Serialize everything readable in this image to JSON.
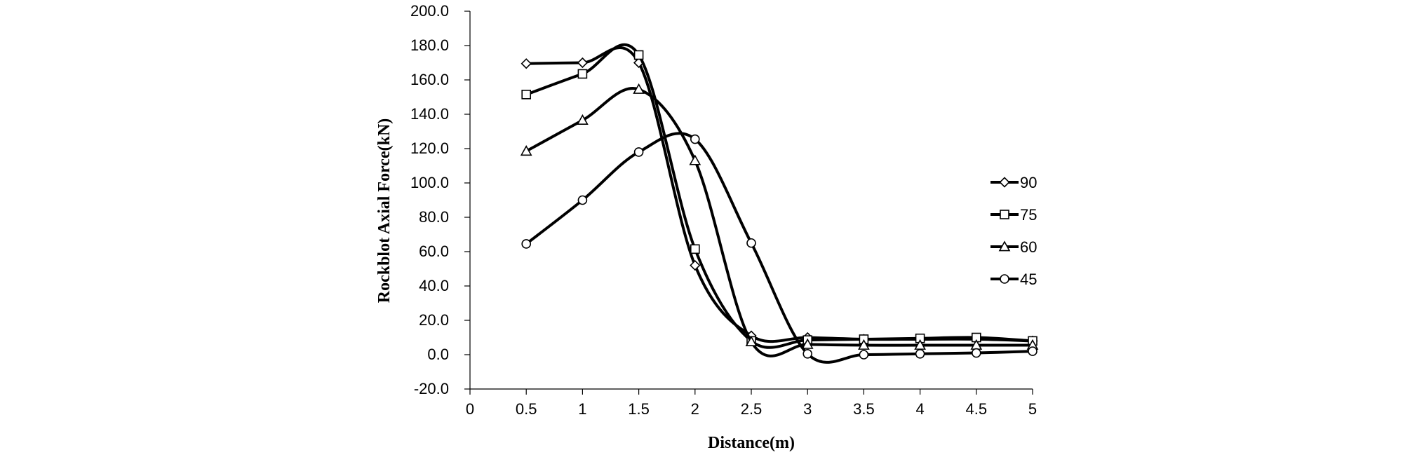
{
  "chart_data": {
    "type": "line",
    "title": "",
    "xlabel": "Distance(m)",
    "ylabel": "Rockblot Axial Force(kN)",
    "xlim": [
      0,
      5
    ],
    "ylim": [
      -20,
      200
    ],
    "x_ticks": [
      "0",
      "0.5",
      "1",
      "1.5",
      "2",
      "2.5",
      "3",
      "3.5",
      "4",
      "4.5",
      "5"
    ],
    "y_ticks": [
      "-20.0",
      "0.0",
      "20.0",
      "40.0",
      "60.0",
      "80.0",
      "100.0",
      "120.0",
      "140.0",
      "160.0",
      "180.0",
      "200.0"
    ],
    "grid": false,
    "smooth": true,
    "legend_position": "right",
    "x": [
      0.5,
      1,
      1.5,
      2,
      2.5,
      3,
      3.5,
      4,
      4.5,
      5
    ],
    "series": [
      {
        "name": "90",
        "marker": "diamond",
        "color": "#000000",
        "values": [
          169.5,
          170,
          170,
          52,
          11,
          10,
          9,
          9,
          9,
          8
        ]
      },
      {
        "name": "75",
        "marker": "square",
        "color": "#000000",
        "values": [
          151.5,
          163.5,
          174.5,
          61.5,
          8,
          8.5,
          9,
          9.5,
          10,
          8
        ]
      },
      {
        "name": "60",
        "marker": "triangle",
        "color": "#000000",
        "values": [
          118.5,
          136.5,
          154.5,
          113,
          7.5,
          6,
          5.5,
          5.5,
          5.5,
          5.5
        ]
      },
      {
        "name": "45",
        "marker": "circle",
        "color": "#000000",
        "values": [
          64.5,
          90,
          118,
          125.5,
          65,
          0.5,
          0,
          0.5,
          1,
          2
        ]
      }
    ]
  }
}
